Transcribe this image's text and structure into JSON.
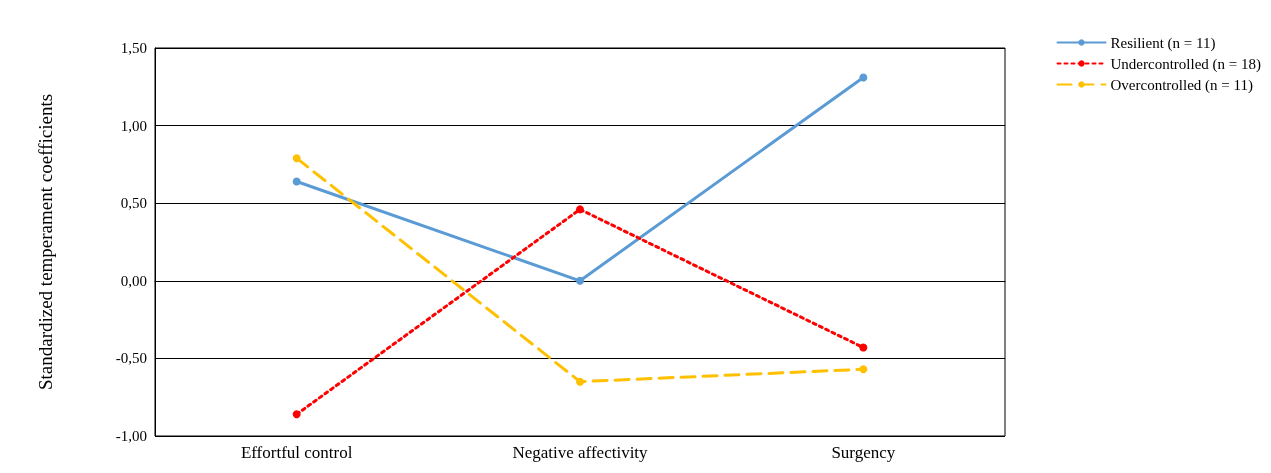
{
  "chart_data": {
    "type": "line",
    "ylabel": "Standardized temperament coefficients",
    "categories": [
      "Effortful control",
      "Negative affectivity",
      "Surgency"
    ],
    "series": [
      {
        "name": "Resilient (n = 11)",
        "color": "#5b9bd5",
        "values": [
          0.64,
          0.0,
          1.31
        ],
        "line_style": "solid"
      },
      {
        "name": "Undercontrolled (n = 18)",
        "color": "#ff0000",
        "values": [
          -0.86,
          0.46,
          -0.43
        ],
        "line_style": "dotted"
      },
      {
        "name": "Overcontrolled (n = 11)",
        "color": "#ffc000",
        "values": [
          0.79,
          -0.65,
          -0.57
        ],
        "line_style": "dashed"
      }
    ],
    "ylim": [
      -1,
      1.5
    ],
    "yticks": [
      {
        "value": -1,
        "label": "-1,00"
      },
      {
        "value": -0.5,
        "label": "-0,50"
      },
      {
        "value": 0,
        "label": "0,00"
      },
      {
        "value": 0.5,
        "label": "0,50"
      },
      {
        "value": 1,
        "label": "1,00"
      },
      {
        "value": 1.5,
        "label": "1,50"
      }
    ],
    "grid": "y",
    "legend": "top right",
    "marker": "circle"
  }
}
